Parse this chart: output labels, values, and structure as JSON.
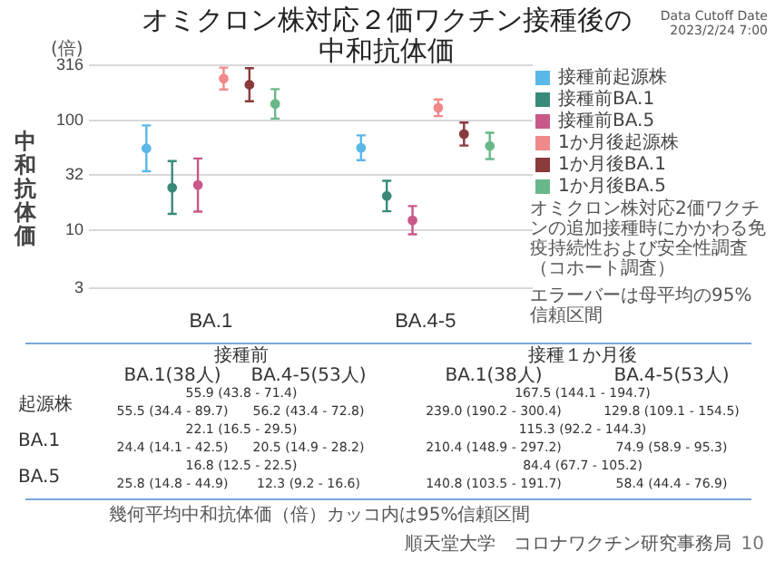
{
  "chart_data": {
    "type": "scatter",
    "title": "オミクロン株対応２価ワクチン接種後の中和抗体価",
    "ylabel": "中和抗体価",
    "categories": [
      "BA.1",
      "BA.4-5"
    ],
    "log": "y",
    "ylim": [
      3,
      316
    ],
    "yticks": [
      3,
      10,
      32,
      100,
      316
    ],
    "grid": "y",
    "legend": "top right",
    "marker": "circle",
    "series": [
      {
        "name": "接種前起源株",
        "color": "#5bb8e8",
        "values": [
          55.5,
          56.2
        ],
        "errors": [
          [
            34.4,
            89.7
          ],
          [
            43.4,
            72.8
          ]
        ]
      },
      {
        "name": "接種前BA.1",
        "color": "#3a8a7a",
        "values": [
          24.4,
          20.5
        ],
        "errors": [
          [
            14.1,
            42.5
          ],
          [
            14.9,
            28.2
          ]
        ]
      },
      {
        "name": "接種前BA.5",
        "color": "#c9588a",
        "values": [
          25.8,
          12.3
        ],
        "errors": [
          [
            14.8,
            44.9
          ],
          [
            9.2,
            16.6
          ]
        ]
      },
      {
        "name": "1か月後起源株",
        "color": "#f08a8a",
        "values": [
          239.0,
          129.8
        ],
        "errors": [
          [
            190.2,
            300.4
          ],
          [
            109.1,
            154.5
          ]
        ]
      },
      {
        "name": "1か月後BA.1",
        "color": "#8a3a3a",
        "values": [
          210.4,
          74.9
        ],
        "errors": [
          [
            148.9,
            297.2
          ],
          [
            58.9,
            95.3
          ]
        ]
      },
      {
        "name": "1か月後BA.5",
        "color": "#6ab88a",
        "values": [
          140.8,
          58.4
        ],
        "errors": [
          [
            103.5,
            191.7
          ],
          [
            44.4,
            76.9
          ]
        ]
      }
    ],
    "annotations": [
      "オミクロン株対応2価ワクチンの追加接種時にかかわる免疫持続性および安全性調査（コホート調査）",
      "Data Cutoff Date\n2023/2/24 7:00",
      "(倍)",
      "エラーバーは母平均の95%信頼区間",
      "接種前",
      "接種１か月後",
      "BA.1(38人)",
      "BA.4-5(53人)",
      "BA.1(38人)",
      "BA.4-5(53人)",
      "起源株",
      "BA.1",
      "BA.5",
      "55.9 (43.8 - 71.4)",
      "167.5 (144.1 - 194.7)",
      "22.1 (16.5 - 29.5)",
      "115.3 (92.2 - 144.3)",
      "16.8 (12.5 - 22.5)",
      "84.4 (67.7 - 105.2)",
      "幾何平均中和抗体価（倍）カッコ内は95%信頼区間",
      "順天堂大学　コロナワクチン研究事務局",
      "10",
      "55.5 (34.4 - 89.7)",
      "56.2 (43.4 - 72.8)",
      "239.0 (190.2 - 300.4)",
      "129.8 (109.1 - 154.5)",
      "24.4 (14.1 - 42.5)",
      "20.5 (14.9 - 28.2)",
      "210.4 (148.9 - 297.2)",
      "74.9 (58.9 - 95.3)",
      "25.8 (14.8 - 44.9)",
      "12.3 (9.2 - 16.6)",
      "140.8 (103.5 - 191.7)",
      "58.4 (44.4 - 76.9)"
    ]
  }
}
